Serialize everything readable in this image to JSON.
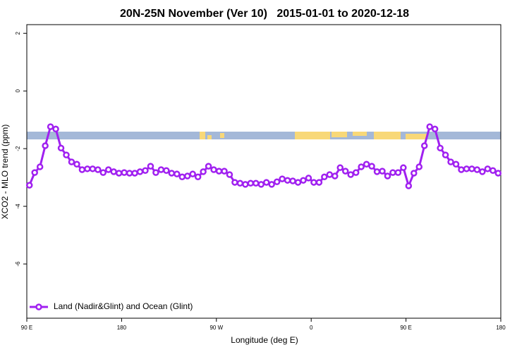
{
  "chart_data": {
    "type": "line",
    "title": "20N-25N November (Ver 10)   2015-01-01 to 2020-12-18",
    "x_label": "Longitude (deg E)",
    "y_label": "XCO2 - MLO trend (ppm)",
    "xlim": [
      90,
      540
    ],
    "xticks": [
      {
        "value": 90,
        "label": "90 E"
      },
      180,
      {
        "value": 270,
        "label": "90 W"
      },
      {
        "value": 360,
        "label": "0"
      },
      {
        "value": 450,
        "label": "90 E"
      },
      {
        "value": 540,
        "label": "180"
      }
    ],
    "ylim": [
      -7.88,
      2.3
    ],
    "yticks": [
      2,
      0,
      -2,
      -4,
      -6
    ],
    "legend": "bottomleft",
    "x": [
      92.5,
      97.5,
      102.5,
      107.5,
      112.5,
      117.5,
      122.5,
      127.5,
      132.5,
      137.5,
      142.5,
      147.5,
      152.5,
      157.5,
      162.5,
      167.5,
      172.5,
      177.5,
      182.5,
      187.5,
      192.5,
      197.5,
      202.5,
      207.5,
      212.5,
      217.5,
      222.5,
      227.5,
      232.5,
      237.5,
      242.5,
      247.5,
      252.5,
      257.5,
      262.5,
      267.5,
      272.5,
      277.5,
      282.5,
      287.5,
      292.5,
      297.5,
      302.5,
      307.5,
      312.5,
      317.5,
      322.5,
      327.5,
      332.5,
      337.5,
      342.5,
      347.5,
      352.5,
      357.5,
      362.5,
      367.5,
      372.5,
      377.5,
      382.5,
      387.5,
      392.5,
      397.5,
      402.5,
      407.5,
      412.5,
      417.5,
      422.5,
      427.5,
      432.5,
      437.5,
      442.5,
      447.5,
      452.5,
      457.5,
      462.5,
      467.5,
      472.5,
      477.5,
      482.5,
      487.5,
      492.5,
      497.5,
      502.5,
      507.5,
      512.5,
      517.5,
      522.5,
      527.5,
      532.5,
      537.5
    ],
    "series": [
      {
        "name": "Land (Nadir&Glint) and Ocean (Glint)",
        "color": "#a020f0",
        "values": [
          -3.27,
          -2.83,
          -2.63,
          -1.9,
          -1.24,
          -1.32,
          -1.98,
          -2.22,
          -2.46,
          -2.54,
          -2.73,
          -2.7,
          -2.7,
          -2.73,
          -2.83,
          -2.73,
          -2.8,
          -2.85,
          -2.83,
          -2.85,
          -2.85,
          -2.8,
          -2.76,
          -2.61,
          -2.83,
          -2.73,
          -2.76,
          -2.85,
          -2.88,
          -2.98,
          -2.95,
          -2.88,
          -2.98,
          -2.8,
          -2.61,
          -2.73,
          -2.78,
          -2.78,
          -2.9,
          -3.17,
          -3.2,
          -3.24,
          -3.2,
          -3.2,
          -3.24,
          -3.17,
          -3.24,
          -3.15,
          -3.05,
          -3.1,
          -3.12,
          -3.17,
          -3.1,
          -3.02,
          -3.17,
          -3.17,
          -2.98,
          -2.9,
          -2.95,
          -2.66,
          -2.78,
          -2.9,
          -2.83,
          -2.63,
          -2.54,
          -2.61,
          -2.8,
          -2.78,
          -2.95,
          -2.83,
          -2.83,
          -2.66,
          -3.29,
          -2.85,
          -2.63,
          -1.9,
          -1.24,
          -1.32,
          -1.98,
          -2.22,
          -2.46,
          -2.54,
          -2.73,
          -2.7,
          -2.7,
          -2.73,
          -2.8,
          -2.7,
          -2.76,
          -2.85
        ]
      }
    ]
  }
}
